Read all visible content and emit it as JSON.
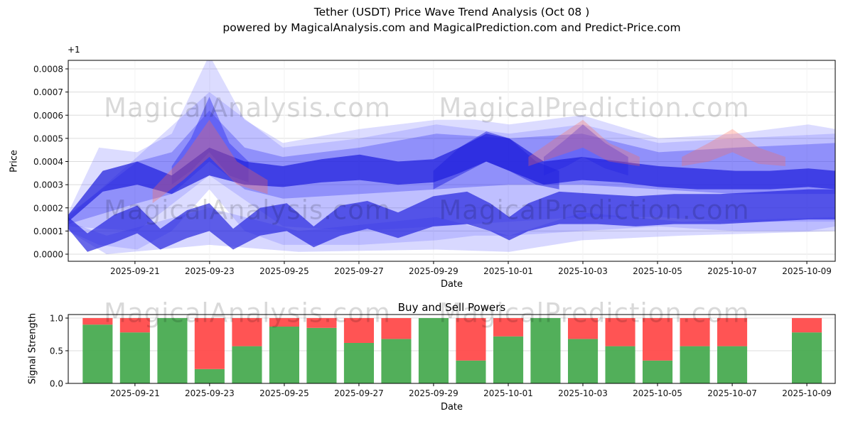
{
  "title": "Tether (USDT) Price Wave Trend Analysis (Oct 08 )",
  "subtitle": "powered by MagicalAnalysis.com and MagicalPrediction.com and Predict-Price.com",
  "watermarks": {
    "left": "MagicalAnalysis.com",
    "right": "MagicalPrediction.com"
  },
  "colors": {
    "blue1": "#3b3bff",
    "blue2": "#2e2ef0",
    "blue3": "#2020dd",
    "red_band": "#ff6a55",
    "buy_green": "#43a84c",
    "sell_red": "#ff4545",
    "grid": "#dcdcdc",
    "grid_faint": "#f2f2f2",
    "spine": "#000000"
  },
  "chart_data": [
    {
      "type": "area",
      "name": "price_wave",
      "ylabel": "Price",
      "xlabel": "Date",
      "offset_text": "+1",
      "ylim": [
        0.0,
        0.0008
      ],
      "y_unit": "1e-4",
      "ytick_values": [
        0,
        1,
        2,
        3,
        4,
        5,
        6,
        7,
        8
      ],
      "ytick_labels": [
        "0.0000",
        "0.0001",
        "0.0002",
        "0.0003",
        "0.0004",
        "0.0005",
        "0.0006",
        "0.0007",
        "0.0008"
      ],
      "xticks": {
        "labels": [
          "2025-09-21",
          "2025-09-23",
          "2025-09-25",
          "2025-09-27",
          "2025-09-29",
          "2025-10-01",
          "2025-10-03",
          "2025-10-05",
          "2025-10-07",
          "2025-10-09"
        ],
        "pos": [
          0.087,
          0.1843,
          0.2817,
          0.379,
          0.4763,
          0.5737,
          0.671,
          0.7683,
          0.8657,
          0.963
        ]
      },
      "bands": [
        {
          "name": "outer-light",
          "color": "blue1",
          "opacity": 0.18,
          "x": [
            0.0,
            0.04,
            0.09,
            0.135,
            0.184,
            0.23,
            0.28,
            0.38,
            0.48,
            0.53,
            0.575,
            0.67,
            0.77,
            0.87,
            0.965,
            1.0
          ],
          "top": [
            1.8,
            4.6,
            4.4,
            5.2,
            8.6,
            5.8,
            4.8,
            5.4,
            5.8,
            5.8,
            5.6,
            6.0,
            5.0,
            5.2,
            5.6,
            5.4
          ],
          "bottom": [
            1.0,
            0.4,
            0.2,
            1.0,
            2.8,
            1.0,
            0.4,
            0.4,
            0.6,
            0.8,
            0.8,
            1.0,
            1.2,
            1.0,
            1.0,
            1.2
          ]
        },
        {
          "name": "outer-light-2",
          "color": "blue1",
          "opacity": 0.18,
          "x": [
            0.0,
            0.09,
            0.184,
            0.28,
            0.38,
            0.48,
            0.575,
            0.67,
            0.77,
            0.87,
            1.0
          ],
          "top": [
            1.6,
            4.2,
            7.0,
            4.6,
            5.0,
            5.6,
            5.2,
            5.6,
            4.8,
            5.0,
            5.2
          ],
          "bottom": [
            1.2,
            1.0,
            3.4,
            1.2,
            1.0,
            1.2,
            1.4,
            1.6,
            1.6,
            1.4,
            1.4
          ]
        },
        {
          "name": "bottom-wedge",
          "color": "blue1",
          "opacity": 0.2,
          "x": [
            0.0,
            0.05,
            0.184,
            0.3,
            0.48,
            0.575,
            0.67,
            0.8,
            1.0
          ],
          "top": [
            1.4,
            0.8,
            2.0,
            1.0,
            1.6,
            0.8,
            1.8,
            1.4,
            1.6
          ],
          "bottom": [
            1.0,
            0.0,
            0.4,
            0.1,
            0.2,
            0.1,
            0.6,
            0.8,
            1.0
          ]
        },
        {
          "name": "mid",
          "color": "blue2",
          "opacity": 0.32,
          "x": [
            0.0,
            0.09,
            0.135,
            0.184,
            0.23,
            0.28,
            0.38,
            0.48,
            0.575,
            0.67,
            0.77,
            0.87,
            1.0
          ],
          "top": [
            1.7,
            4.0,
            4.4,
            6.2,
            4.6,
            4.2,
            4.6,
            5.2,
            5.0,
            5.2,
            4.4,
            4.6,
            4.8
          ],
          "bottom": [
            1.3,
            2.2,
            2.6,
            4.0,
            2.8,
            2.4,
            2.6,
            2.8,
            3.0,
            3.0,
            2.8,
            2.6,
            2.6
          ]
        },
        {
          "name": "spike-0923-mid",
          "color": "blue2",
          "opacity": 0.45,
          "x": [
            0.135,
            0.16,
            0.184,
            0.21,
            0.235
          ],
          "top": [
            3.8,
            5.0,
            6.8,
            4.8,
            4.0
          ],
          "bottom": [
            3.0,
            3.6,
            4.4,
            3.4,
            3.1
          ]
        },
        {
          "name": "hump-1003",
          "color": "blue2",
          "opacity": 0.4,
          "x": [
            0.62,
            0.65,
            0.671,
            0.7,
            0.73
          ],
          "top": [
            4.2,
            5.0,
            5.6,
            4.8,
            4.2
          ],
          "bottom": [
            3.4,
            3.8,
            4.2,
            3.7,
            3.4
          ]
        },
        {
          "name": "core",
          "color": "blue3",
          "opacity": 0.72,
          "x": [
            0.0,
            0.045,
            0.09,
            0.135,
            0.184,
            0.23,
            0.28,
            0.33,
            0.38,
            0.43,
            0.476,
            0.51,
            0.545,
            0.575,
            0.62,
            0.67,
            0.72,
            0.77,
            0.82,
            0.87,
            0.915,
            0.965,
            1.0
          ],
          "top": [
            1.7,
            3.6,
            4.0,
            3.4,
            4.6,
            4.0,
            3.8,
            4.1,
            4.3,
            4.0,
            4.1,
            4.6,
            5.2,
            5.0,
            4.0,
            4.2,
            4.0,
            3.8,
            3.7,
            3.6,
            3.6,
            3.7,
            3.6
          ],
          "bottom": [
            1.4,
            2.7,
            3.0,
            2.6,
            3.4,
            3.0,
            2.9,
            3.1,
            3.2,
            3.0,
            3.1,
            3.5,
            4.0,
            3.6,
            3.0,
            3.2,
            3.1,
            2.9,
            2.8,
            2.8,
            2.8,
            2.9,
            2.8
          ]
        },
        {
          "name": "lower-dark",
          "color": "blue3",
          "opacity": 0.68,
          "x": [
            0.0,
            0.025,
            0.06,
            0.09,
            0.12,
            0.155,
            0.184,
            0.215,
            0.25,
            0.285,
            0.32,
            0.355,
            0.39,
            0.43,
            0.476,
            0.52,
            0.55,
            0.575,
            0.6,
            0.64,
            0.69,
            0.74,
            0.79,
            0.85,
            0.91,
            0.965,
            1.0
          ],
          "top": [
            1.6,
            0.9,
            1.7,
            2.1,
            1.1,
            1.9,
            2.2,
            1.1,
            2.0,
            2.2,
            1.2,
            2.1,
            2.3,
            1.8,
            2.5,
            2.7,
            2.2,
            1.6,
            2.2,
            2.7,
            2.6,
            2.5,
            2.6,
            2.6,
            2.7,
            2.8,
            2.8
          ],
          "bottom": [
            1.1,
            0.1,
            0.5,
            0.9,
            0.2,
            0.7,
            1.0,
            0.2,
            0.8,
            1.0,
            0.3,
            0.8,
            1.1,
            0.7,
            1.2,
            1.3,
            1.0,
            0.6,
            1.0,
            1.3,
            1.3,
            1.2,
            1.3,
            1.3,
            1.4,
            1.5,
            1.5
          ]
        },
        {
          "name": "hump-0930",
          "color": "blue3",
          "opacity": 0.5,
          "x": [
            0.476,
            0.51,
            0.545,
            0.575,
            0.61,
            0.64
          ],
          "top": [
            3.6,
            4.6,
            5.3,
            5.0,
            4.0,
            3.6
          ],
          "bottom": [
            2.8,
            3.4,
            4.0,
            3.6,
            3.0,
            2.8
          ]
        },
        {
          "name": "spike-0923-red",
          "color": "red_band",
          "opacity": 0.32,
          "x": [
            0.11,
            0.15,
            0.184,
            0.22,
            0.26
          ],
          "top": [
            2.8,
            4.2,
            5.8,
            4.0,
            3.2
          ],
          "bottom": [
            2.2,
            3.2,
            4.2,
            3.0,
            2.6
          ]
        },
        {
          "name": "spike-1003-red",
          "color": "red_band",
          "opacity": 0.3,
          "x": [
            0.6,
            0.635,
            0.671,
            0.705,
            0.745
          ],
          "top": [
            4.2,
            5.0,
            5.8,
            4.8,
            4.2
          ],
          "bottom": [
            3.8,
            4.2,
            4.6,
            4.0,
            3.8
          ]
        },
        {
          "name": "spike-1007-red",
          "color": "red_band",
          "opacity": 0.3,
          "x": [
            0.8,
            0.835,
            0.866,
            0.9,
            0.935
          ],
          "top": [
            4.2,
            4.8,
            5.4,
            4.6,
            4.2
          ],
          "bottom": [
            3.8,
            4.0,
            4.4,
            3.9,
            3.8
          ]
        }
      ]
    },
    {
      "type": "bar",
      "name": "buy_sell_powers",
      "title": "Buy and Sell Powers",
      "ylabel": "Signal Strength",
      "xlabel": "Date",
      "ylim": [
        0,
        1
      ],
      "ytick_values": [
        0,
        0.5,
        1
      ],
      "ytick_labels": [
        "0.0",
        "0.5",
        "1.0"
      ],
      "categories": [
        "2025-09-20",
        "2025-09-21",
        "2025-09-22",
        "2025-09-23",
        "2025-09-24",
        "2025-09-25",
        "2025-09-26",
        "2025-09-27",
        "2025-09-28",
        "2025-09-29",
        "2025-09-30",
        "2025-10-01",
        "2025-10-02",
        "2025-10-03",
        "2025-10-04",
        "2025-10-05",
        "2025-10-06",
        "2025-10-07",
        "2025-10-08",
        "2025-10-09"
      ],
      "x_centers": [
        0.0383,
        0.087,
        0.1357,
        0.1843,
        0.233,
        0.2817,
        0.3303,
        0.379,
        0.4277,
        0.4763,
        0.525,
        0.5737,
        0.6223,
        0.671,
        0.7197,
        0.7683,
        0.817,
        0.8657,
        0.9143,
        0.963
      ],
      "bar_width": 0.039,
      "series": [
        {
          "name": "Buy",
          "values": [
            0.9,
            0.78,
            1.0,
            0.22,
            0.57,
            0.87,
            0.85,
            0.62,
            0.68,
            1.0,
            0.35,
            0.72,
            1.0,
            0.68,
            0.57,
            0.35,
            0.57,
            0.57,
            null,
            0.78
          ]
        },
        {
          "name": "Sell",
          "values": [
            0.1,
            0.22,
            0.0,
            0.78,
            0.43,
            0.13,
            0.15,
            0.38,
            0.32,
            0.0,
            0.65,
            0.28,
            0.0,
            0.32,
            0.43,
            0.65,
            0.43,
            0.43,
            null,
            0.22
          ]
        }
      ],
      "xticks": {
        "labels": [
          "2025-09-21",
          "2025-09-23",
          "2025-09-25",
          "2025-09-27",
          "2025-09-29",
          "2025-10-01",
          "2025-10-03",
          "2025-10-05",
          "2025-10-07",
          "2025-10-09"
        ],
        "pos": [
          0.087,
          0.1843,
          0.2817,
          0.379,
          0.4763,
          0.5737,
          0.671,
          0.7683,
          0.8657,
          0.963
        ]
      }
    }
  ]
}
